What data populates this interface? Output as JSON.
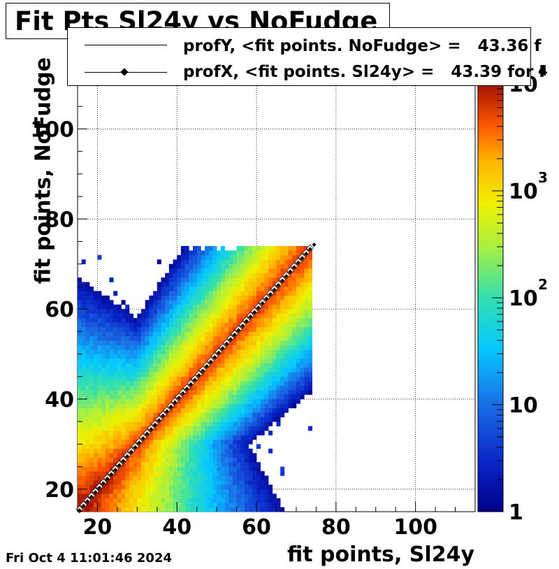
{
  "title": "Fit Pts Sl24y vs NoFudge",
  "timestamp": "Fri Oct  4 11:01:46 2024",
  "legend": [
    {
      "label": "profY, <fit points. NoFudge> =   43.36 f",
      "marker": "none"
    },
    {
      "label": "profX, <fit points. Sl24y> =   43.39 for I",
      "marker": "diamond"
    }
  ],
  "chart_data": {
    "type": "heatmap",
    "xlabel": "fit points, Sl24y",
    "ylabel": "fit points, NoFudge",
    "xlim": [
      15,
      115
    ],
    "ylim": [
      15,
      110
    ],
    "x_ticks": [
      "20",
      "40",
      "60",
      "80",
      "100"
    ],
    "y_ticks": [
      "20",
      "40",
      "60",
      "80",
      "100"
    ],
    "grid": true,
    "colorbar": {
      "scale": "log",
      "range": [
        1,
        10000
      ],
      "tick_labels": [
        "1",
        "10",
        "10",
        "10",
        "10"
      ],
      "tick_exponents": [
        "",
        "",
        "2",
        "3",
        "4"
      ]
    },
    "populated_region": {
      "x": [
        15,
        74
      ],
      "y": [
        15,
        74
      ]
    },
    "ridge": {
      "x": [
        15,
        73
      ],
      "y": [
        15,
        73
      ],
      "peak_count": 6000
    },
    "profY_points": {
      "x": [
        15,
        73
      ],
      "y": [
        15,
        73
      ],
      "color": "#ffffff"
    },
    "profX_points": {
      "x": [
        15,
        74
      ],
      "y": [
        15,
        74
      ],
      "color": "#000000"
    }
  }
}
